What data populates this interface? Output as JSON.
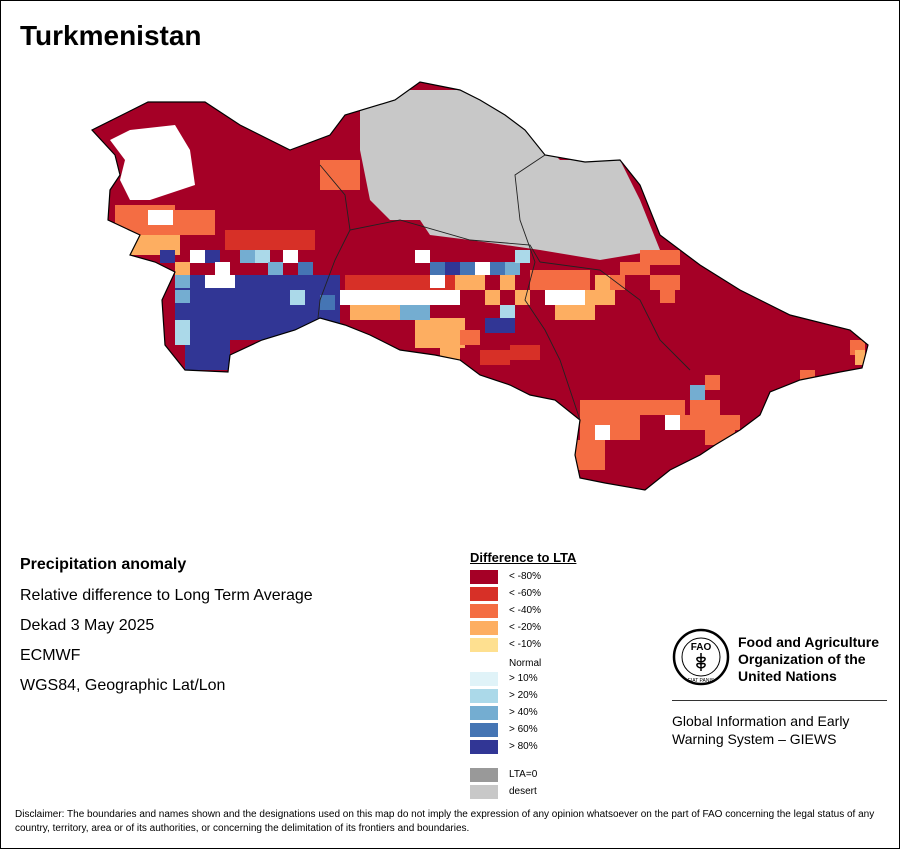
{
  "title": "Turkmenistan",
  "info": {
    "heading": "Precipitation anomaly",
    "line1": "Relative difference to Long Term Average",
    "line2": "Dekad 3 May 2025",
    "line3": "ECMWF",
    "line4": "WGS84, Geographic Lat/Lon"
  },
  "legend": {
    "title": "Difference to LTA",
    "items": [
      {
        "label": "< -80%",
        "color": "#a50026"
      },
      {
        "label": "< -60%",
        "color": "#d73027"
      },
      {
        "label": "< -40%",
        "color": "#f46d43"
      },
      {
        "label": "< -20%",
        "color": "#fdae61"
      },
      {
        "label": "< -10%",
        "color": "#fee090"
      },
      {
        "label": "Normal",
        "color": "#ffffff"
      },
      {
        "label": "> 10%",
        "color": "#e0f3f8"
      },
      {
        "label": "> 20%",
        "color": "#abd9e9"
      },
      {
        "label": "> 40%",
        "color": "#74add1"
      },
      {
        "label": "> 60%",
        "color": "#4575b4"
      },
      {
        "label": "> 80%",
        "color": "#313695"
      },
      {
        "label": "LTA=0",
        "color": "#999999"
      },
      {
        "label": "desert",
        "color": "#c8c8c8"
      }
    ]
  },
  "fao": {
    "name_line1": "Food and Agriculture",
    "name_line2": "Organization of the",
    "name_line3": "United Nations",
    "logo_text": "FAO",
    "motto": "FIAT PANIS",
    "giews_line1": "Global Information and Early",
    "giews_line2": "Warning System – GIEWS"
  },
  "disclaimer": "Disclaimer: The boundaries and names shown and the designations used on this map do not imply the expression of any opinion whatsoever on the part of FAO concerning the legal status of any country, territory, area or of its authorities, or concerning the delimitation of its frontiers and boundaries."
}
